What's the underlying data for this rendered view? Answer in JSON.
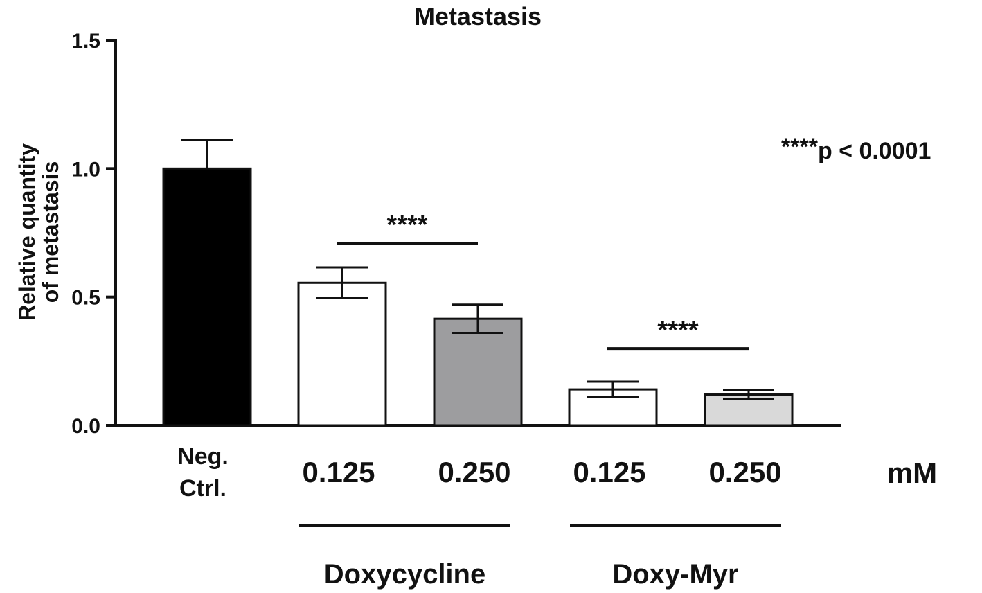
{
  "chart_data": {
    "type": "bar",
    "title": "Metastasis",
    "ylabel_line1": "Relative quantity",
    "ylabel_line2": "of metastasis",
    "ylim": [
      0,
      1.5
    ],
    "yticks": [
      0.0,
      0.5,
      1.0,
      1.5
    ],
    "ytick_labels": [
      "0.0",
      "0.5",
      "1.0",
      "1.5"
    ],
    "bars": [
      {
        "label_lines": [
          "Neg.",
          "Ctrl."
        ],
        "value": 1.0,
        "error": 0.11,
        "fill": "#000000"
      },
      {
        "label_lines": [
          "0.125"
        ],
        "value": 0.555,
        "error": 0.06,
        "fill": "#ffffff"
      },
      {
        "label_lines": [
          "0.250"
        ],
        "value": 0.415,
        "error": 0.055,
        "fill": "#9d9d9f"
      },
      {
        "label_lines": [
          "0.125"
        ],
        "value": 0.14,
        "error": 0.03,
        "fill": "#ffffff"
      },
      {
        "label_lines": [
          "0.250"
        ],
        "value": 0.12,
        "error": 0.018,
        "fill": "#d9d9d9"
      }
    ],
    "unit_label": "mM",
    "groups": [
      {
        "name": "Doxycycline",
        "bar_indices": [
          1,
          2
        ]
      },
      {
        "name": "Doxy-Myr",
        "bar_indices": [
          3,
          4
        ]
      }
    ],
    "significance": [
      {
        "bars": [
          1,
          2
        ],
        "label": "****",
        "y": 0.72
      },
      {
        "bars": [
          3,
          4
        ],
        "label": "****",
        "y": 0.31
      }
    ],
    "legend_note_stars": "****",
    "legend_note_text": "p < 0.0001"
  }
}
